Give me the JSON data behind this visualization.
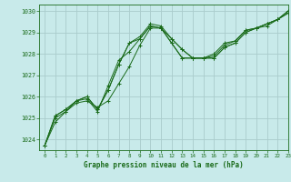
{
  "title": "Graphe pression niveau de la mer (hPa)",
  "bg_color": "#c8eaea",
  "grid_color": "#aacccc",
  "line_color": "#1a6b1a",
  "xlim": [
    -0.5,
    23
  ],
  "ylim": [
    1023.5,
    1030.3
  ],
  "yticks": [
    1024,
    1025,
    1026,
    1027,
    1028,
    1029,
    1030
  ],
  "xticks": [
    0,
    1,
    2,
    3,
    4,
    5,
    6,
    7,
    8,
    9,
    10,
    11,
    12,
    13,
    14,
    15,
    16,
    17,
    18,
    19,
    20,
    21,
    22,
    23
  ],
  "series": [
    [
      1023.7,
      1024.8,
      1025.3,
      1025.7,
      1025.8,
      1025.5,
      1025.8,
      1026.6,
      1027.4,
      1028.4,
      1029.2,
      1029.2,
      1028.5,
      1027.8,
      1027.8,
      1027.8,
      1027.8,
      1028.3,
      1028.5,
      1029.0,
      1029.2,
      1029.4,
      1029.6,
      1029.9
    ],
    [
      1023.7,
      1025.0,
      1025.3,
      1025.8,
      1025.9,
      1025.3,
      1026.5,
      1027.7,
      1028.1,
      1028.7,
      1029.3,
      1029.2,
      1028.5,
      1027.8,
      1027.8,
      1027.8,
      1027.8,
      1028.3,
      1028.5,
      1029.0,
      1029.2,
      1029.3,
      1029.6,
      1029.9
    ],
    [
      1023.7,
      1025.1,
      1025.4,
      1025.8,
      1026.0,
      1025.4,
      1026.3,
      1027.5,
      1028.5,
      1028.7,
      1029.3,
      1029.2,
      1028.7,
      1028.2,
      1027.8,
      1027.8,
      1027.9,
      1028.4,
      1028.6,
      1029.1,
      1029.2,
      1029.4,
      1029.6,
      1030.0
    ],
    [
      1023.7,
      1025.1,
      1025.4,
      1025.8,
      1026.0,
      1025.4,
      1026.3,
      1027.5,
      1028.5,
      1028.8,
      1029.4,
      1029.3,
      1028.7,
      1028.2,
      1027.8,
      1027.8,
      1028.0,
      1028.5,
      1028.6,
      1029.1,
      1029.2,
      1029.4,
      1029.6,
      1030.0
    ]
  ]
}
